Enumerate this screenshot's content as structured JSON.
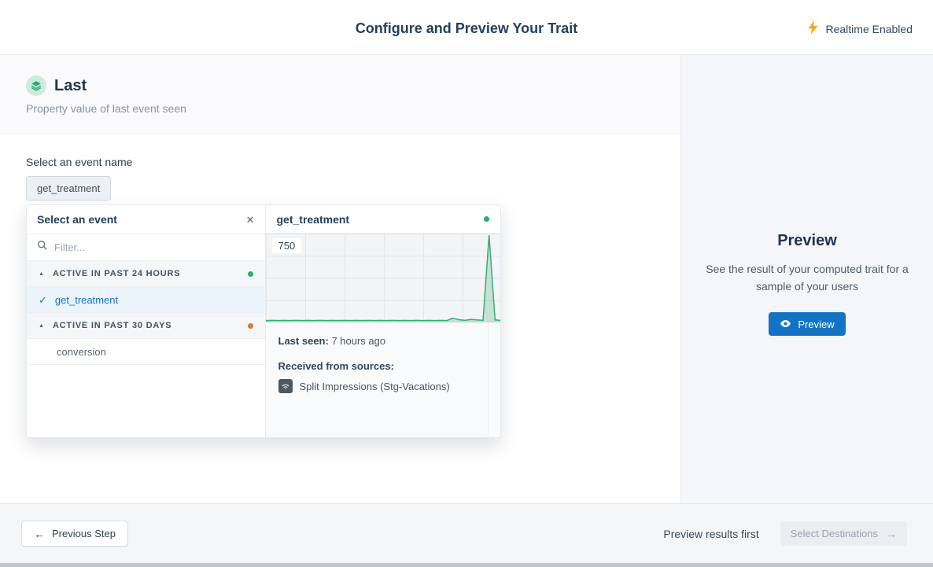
{
  "header": {
    "title": "Configure and Preview Your Trait",
    "realtime_label": "Realtime Enabled"
  },
  "trait": {
    "name": "Last",
    "description": "Property value of last event seen"
  },
  "event_select": {
    "label": "Select an event name",
    "chip": "get_treatment"
  },
  "popover": {
    "title": "Select an event",
    "filter_placeholder": "Filter...",
    "groups": [
      {
        "label": "ACTIVE IN PAST 24 HOURS",
        "dot_color": "#2BAE66",
        "items": [
          {
            "label": "get_treatment",
            "selected": true
          }
        ]
      },
      {
        "label": "ACTIVE IN PAST 30 DAYS",
        "dot_color": "#E0782F",
        "items": [
          {
            "label": "conversion",
            "selected": false
          }
        ]
      }
    ],
    "detail": {
      "title": "get_treatment",
      "status_dot_color": "#2BAE66",
      "last_seen_label": "Last seen:",
      "last_seen_value": "7 hours ago",
      "sources_label": "Received from sources:",
      "source_name": "Split Impressions (Stg-Vacations)"
    }
  },
  "chart_data": {
    "type": "area",
    "title": "get_treatment event volume",
    "xlabel": "",
    "ylabel": "",
    "ymax_label": "750",
    "ylim": [
      0,
      750
    ],
    "grid": {
      "columns": 6,
      "rows": 4,
      "visible": true
    },
    "legend": "none",
    "values": [
      3,
      4,
      3,
      4,
      3,
      4,
      3,
      4,
      3,
      4,
      3,
      4,
      3,
      4,
      3,
      4,
      3,
      4,
      3,
      4,
      3,
      4,
      3,
      4,
      3,
      4,
      3,
      4,
      3,
      4,
      3,
      24,
      10,
      4,
      13,
      9,
      4,
      750,
      8,
      4
    ]
  },
  "preview_panel": {
    "title": "Preview",
    "description": "See the result of your computed trait for a sample of your users",
    "button_label": "Preview"
  },
  "footer": {
    "previous_label": "Previous Step",
    "hint": "Preview results first",
    "next_label": "Select Destinations"
  },
  "icons": {
    "back_arrow": "←",
    "forward_arrow": "→",
    "close": "✕",
    "check": "✓",
    "collapse": "▲"
  },
  "colors": {
    "accent_blue": "#1273C4",
    "chart_line": "#3BAA76",
    "chart_fill": "rgba(59,170,118,0.25)",
    "green_dot": "#2BAE66",
    "orange_dot": "#E0782F",
    "bolt": "#F5A623"
  }
}
